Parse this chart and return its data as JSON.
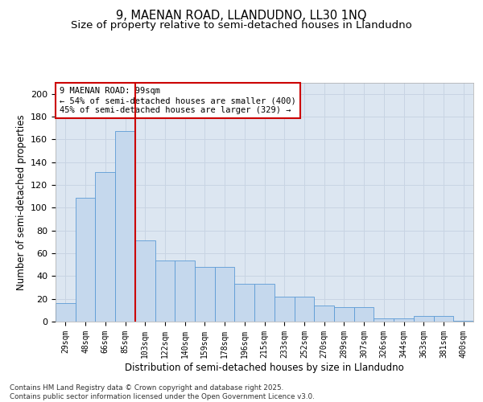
{
  "title_line1": "9, MAENAN ROAD, LLANDUDNO, LL30 1NQ",
  "title_line2": "Size of property relative to semi-detached houses in Llandudno",
  "xlabel": "Distribution of semi-detached houses by size in Llandudno",
  "ylabel": "Number of semi-detached properties",
  "categories": [
    "29sqm",
    "48sqm",
    "66sqm",
    "85sqm",
    "103sqm",
    "122sqm",
    "140sqm",
    "159sqm",
    "178sqm",
    "196sqm",
    "215sqm",
    "233sqm",
    "252sqm",
    "270sqm",
    "289sqm",
    "307sqm",
    "326sqm",
    "344sqm",
    "363sqm",
    "381sqm",
    "400sqm"
  ],
  "bar_values": [
    16,
    109,
    131,
    167,
    71,
    54,
    54,
    48,
    48,
    33,
    33,
    22,
    22,
    14,
    13,
    13,
    3,
    3,
    5,
    5,
    1
  ],
  "property_sqm": 99,
  "pct_smaller": 54,
  "count_smaller": 400,
  "pct_larger": 45,
  "count_larger": 329,
  "bar_color": "#c5d8ed",
  "bar_edge_color": "#5b9bd5",
  "line_color": "#cc0000",
  "annotation_box_edge": "#cc0000",
  "ylim": [
    0,
    210
  ],
  "yticks": [
    0,
    20,
    40,
    60,
    80,
    100,
    120,
    140,
    160,
    180,
    200
  ],
  "grid_color": "#c8d4e3",
  "background_color": "#dce6f1",
  "footer_text": "Contains HM Land Registry data © Crown copyright and database right 2025.\nContains public sector information licensed under the Open Government Licence v3.0.",
  "title_fontsize": 10.5,
  "subtitle_fontsize": 9.5,
  "axis_label_fontsize": 8.5,
  "tick_fontsize": 8,
  "annot_fontsize": 7.5
}
